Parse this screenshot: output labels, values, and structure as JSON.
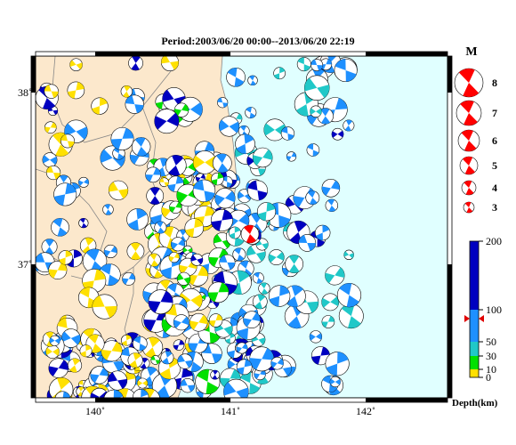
{
  "title": "Period:2003/06/20 00:00--2013/06/20 22:19",
  "lat_labels": [
    "38˚",
    "37˚"
  ],
  "lon_labels": [
    "140˚",
    "141˚",
    "142˚"
  ],
  "magnitude_legend": {
    "title": "M",
    "labels": [
      "8",
      "7",
      "6",
      "5",
      "4",
      "3"
    ]
  },
  "depth_scale": {
    "ticks": [
      200,
      100,
      50,
      30,
      10,
      0
    ],
    "label": "Depth(km)"
  }
}
